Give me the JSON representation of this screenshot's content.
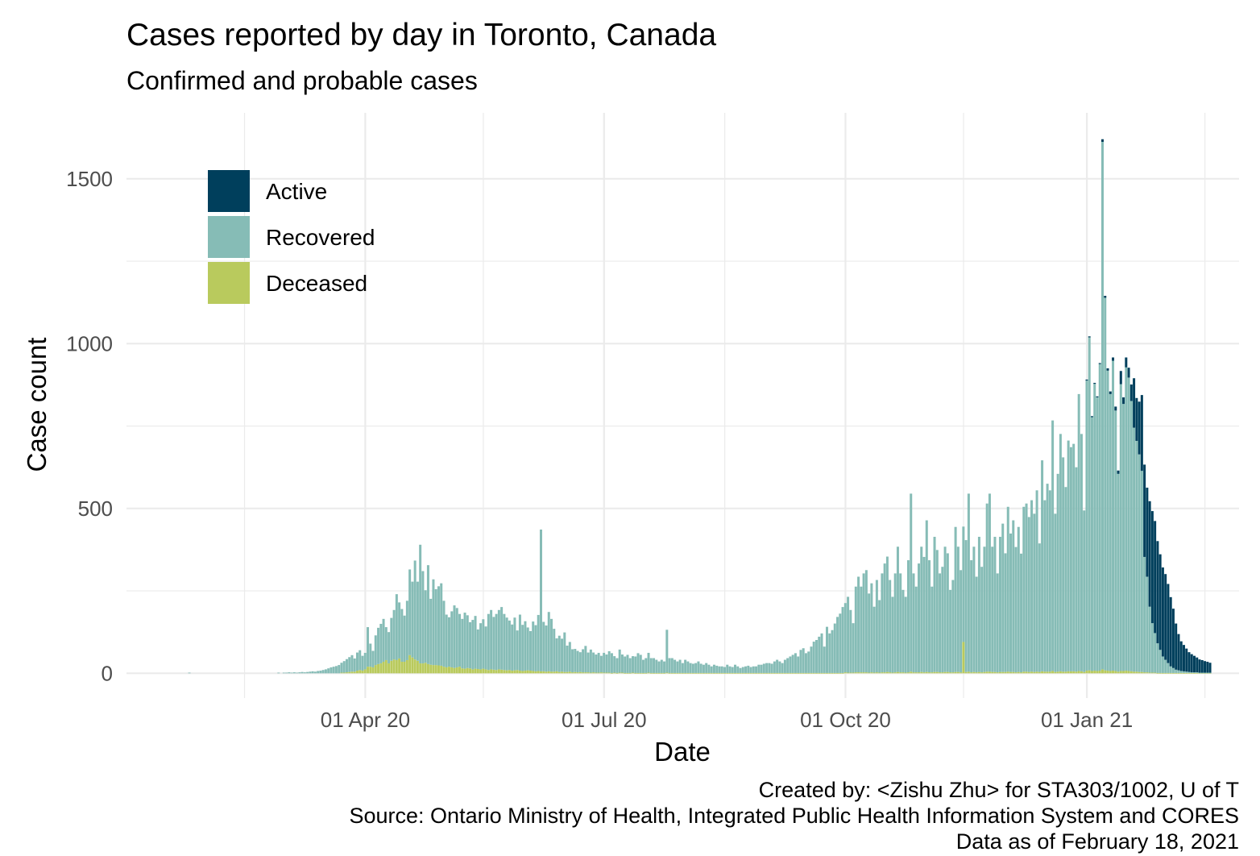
{
  "title": "Cases reported by day in Toronto, Canada",
  "subtitle": "Confirmed and probable cases",
  "caption": [
    "Created by: <Zishu Zhu> for STA303/1002, U of T",
    "Source: Ontario Ministry of Health, Integrated Public Health Information System and CORES",
    "Data as of February 18, 2021"
  ],
  "colors": {
    "active": "#003f5c",
    "recovered": "#86bcb6",
    "deceased": "#b9ca5d",
    "grid": "#ebebeb"
  },
  "chart_data": {
    "type": "bar",
    "stacked": true,
    "xlabel": "Date",
    "ylabel": "Case count",
    "x_ticks": [
      "01 Apr 20",
      "01 Jul 20",
      "01 Oct 20",
      "01 Jan 21"
    ],
    "y_ticks": [
      0,
      500,
      1000,
      1500
    ],
    "ylim": [
      -75,
      1700
    ],
    "xlim": [
      "2020-01-01",
      "2021-02-28"
    ],
    "legend_position": "top-left",
    "series": [
      {
        "name": "Active"
      },
      {
        "name": "Recovered"
      },
      {
        "name": "Deceased"
      }
    ],
    "segments": [
      {
        "start": "2020-01-25",
        "end": "2020-01-25",
        "recovered": [
          2
        ],
        "deceased": [
          0
        ],
        "active": [
          0
        ]
      },
      {
        "start": "2020-02-28",
        "end": "2020-02-28",
        "recovered": [
          2
        ],
        "deceased": [
          0
        ],
        "active": [
          0
        ]
      },
      {
        "start": "2020-03-01",
        "end": "2020-03-15",
        "recovered": [
          2,
          2,
          3,
          2,
          3,
          2,
          3,
          4,
          3,
          4,
          5,
          6,
          5,
          7,
          8
        ],
        "deceased": [
          0,
          0,
          0,
          0,
          0,
          0,
          0,
          0,
          0,
          0,
          0,
          0,
          0,
          0,
          0
        ],
        "active": [
          0,
          0,
          0,
          0,
          0,
          0,
          0,
          0,
          0,
          0,
          0,
          0,
          0,
          0,
          0
        ]
      },
      {
        "start": "2020-03-16",
        "end": "2020-04-30",
        "recovered": [
          10,
          12,
          15,
          18,
          20,
          22,
          25,
          30,
          35,
          40,
          45,
          50,
          40,
          55,
          60,
          45,
          50,
          120,
          70,
          50,
          90,
          110,
          120,
          130,
          100,
          95,
          130,
          150,
          200,
          170,
          160,
          140,
          180,
          260,
          230,
          300,
          240,
          360,
          280,
          220,
          300,
          200,
          260,
          230,
          240,
          250
        ],
        "deceased": [
          0,
          0,
          0,
          0,
          0,
          0,
          0,
          2,
          2,
          3,
          4,
          5,
          5,
          8,
          10,
          8,
          12,
          20,
          20,
          18,
          25,
          28,
          30,
          35,
          40,
          30,
          38,
          42,
          40,
          45,
          35,
          35,
          40,
          55,
          48,
          42,
          38,
          30,
          30,
          32,
          28,
          26,
          25,
          25,
          24,
          23
        ],
        "active": [
          0,
          0,
          0,
          0,
          0,
          0,
          0,
          0,
          0,
          0,
          0,
          0,
          0,
          0,
          0,
          0,
          0,
          0,
          0,
          0,
          0,
          0,
          0,
          0,
          0,
          0,
          0,
          0,
          0,
          0,
          0,
          0,
          0,
          0,
          0,
          0,
          0,
          0,
          0,
          0,
          0,
          0,
          0,
          0,
          0,
          0
        ]
      },
      {
        "start": "2020-05-01",
        "end": "2020-06-30",
        "recovered": [
          200,
          160,
          150,
          170,
          190,
          180,
          160,
          150,
          170,
          160,
          140,
          150,
          160,
          120,
          140,
          150,
          130,
          170,
          180,
          160,
          170,
          180,
          190,
          170,
          160,
          150,
          140,
          160,
          120,
          170,
          140,
          150,
          130,
          120,
          150,
          140,
          170,
          430,
          150,
          140,
          180,
          160,
          130,
          100,
          110,
          100,
          120,
          80,
          90,
          70,
          70,
          65,
          60,
          70,
          80,
          60,
          70,
          60,
          55,
          60,
          50
        ],
        "deceased": [
          20,
          18,
          20,
          18,
          16,
          18,
          20,
          15,
          14,
          16,
          15,
          12,
          14,
          13,
          12,
          14,
          12,
          10,
          12,
          11,
          10,
          12,
          11,
          10,
          9,
          10,
          8,
          9,
          10,
          8,
          7,
          8,
          9,
          8,
          7,
          6,
          7,
          6,
          6,
          5,
          6,
          5,
          5,
          6,
          4,
          5,
          4,
          4,
          5,
          3,
          4,
          3,
          4,
          3,
          3,
          3,
          2,
          3,
          2,
          2,
          3
        ],
        "active": [
          0,
          0,
          0,
          0,
          0,
          0,
          0,
          0,
          0,
          0,
          0,
          0,
          0,
          0,
          0,
          0,
          0,
          0,
          0,
          0,
          0,
          0,
          0,
          0,
          0,
          0,
          0,
          0,
          0,
          0,
          0,
          0,
          0,
          0,
          0,
          0,
          0,
          0,
          0,
          0,
          0,
          0,
          0,
          0,
          0,
          0,
          0,
          0,
          0,
          0,
          0,
          0,
          0,
          0,
          0,
          0,
          0,
          0,
          0,
          0,
          0
        ]
      },
      {
        "start": "2020-07-01",
        "end": "2020-07-31",
        "recovered": [
          60,
          55,
          65,
          60,
          50,
          45,
          70,
          55,
          50,
          55,
          45,
          50,
          50,
          60,
          55,
          40,
          45,
          60,
          45,
          45,
          40,
          35,
          40,
          35,
          130,
          45,
          45,
          40,
          35,
          40,
          30
        ],
        "deceased": [
          2,
          2,
          2,
          1,
          2,
          1,
          2,
          2,
          1,
          1,
          1,
          2,
          1,
          1,
          1,
          1,
          1,
          2,
          1,
          1,
          1,
          1,
          1,
          1,
          2,
          1,
          1,
          1,
          1,
          1,
          1
        ],
        "active": [
          0,
          0,
          0,
          0,
          0,
          0,
          0,
          0,
          0,
          0,
          0,
          0,
          0,
          0,
          0,
          0,
          0,
          0,
          0,
          0,
          0,
          0,
          0,
          0,
          0,
          0,
          0,
          0,
          0,
          0,
          0
        ]
      },
      {
        "start": "2020-08-01",
        "end": "2020-08-31",
        "recovered": [
          40,
          35,
          30,
          28,
          30,
          35,
          28,
          25,
          30,
          25,
          20,
          25,
          22,
          20,
          20,
          18,
          25,
          20,
          18,
          25,
          20,
          15,
          18,
          20,
          22,
          18,
          20,
          20,
          25,
          25,
          28
        ],
        "deceased": [
          1,
          1,
          1,
          1,
          1,
          1,
          1,
          1,
          1,
          1,
          1,
          1,
          1,
          1,
          1,
          1,
          1,
          1,
          1,
          1,
          1,
          1,
          1,
          1,
          1,
          1,
          1,
          1,
          1,
          1,
          1
        ],
        "active": [
          0,
          0,
          0,
          0,
          0,
          0,
          0,
          0,
          0,
          0,
          0,
          0,
          0,
          0,
          0,
          0,
          0,
          0,
          0,
          0,
          0,
          0,
          0,
          0,
          0,
          0,
          0,
          0,
          0,
          0,
          0
        ]
      },
      {
        "start": "2020-09-01",
        "end": "2020-09-30",
        "recovered": [
          30,
          30,
          28,
          35,
          40,
          35,
          30,
          40,
          45,
          50,
          55,
          60,
          50,
          70,
          75,
          60,
          65,
          80,
          95,
          100,
          110,
          120,
          80,
          140,
          120,
          130,
          150,
          170,
          180,
          200
        ],
        "deceased": [
          1,
          1,
          1,
          1,
          1,
          1,
          1,
          1,
          1,
          1,
          1,
          1,
          1,
          1,
          1,
          1,
          1,
          1,
          1,
          1,
          1,
          1,
          1,
          1,
          1,
          1,
          1,
          1,
          1,
          1
        ],
        "active": [
          0,
          0,
          0,
          0,
          0,
          0,
          0,
          0,
          0,
          0,
          0,
          0,
          0,
          0,
          0,
          0,
          0,
          0,
          0,
          0,
          0,
          0,
          0,
          0,
          0,
          0,
          0,
          0,
          0,
          0
        ]
      },
      {
        "start": "2020-10-01",
        "end": "2020-10-31",
        "recovered": [
          210,
          230,
          190,
          150,
          260,
          290,
          260,
          300,
          310,
          240,
          270,
          200,
          280,
          220,
          300,
          330,
          350,
          280,
          230,
          300,
          380,
          300,
          250,
          230,
          340,
          540,
          300,
          260,
          330,
          380,
          350
        ],
        "deceased": [
          3,
          2,
          2,
          2,
          3,
          3,
          3,
          3,
          3,
          2,
          3,
          2,
          3,
          2,
          3,
          3,
          4,
          3,
          2,
          3,
          4,
          3,
          3,
          2,
          3,
          5,
          3,
          3,
          3,
          4,
          3
        ],
        "active": [
          0,
          0,
          0,
          0,
          0,
          0,
          0,
          0,
          0,
          0,
          0,
          0,
          0,
          0,
          0,
          0,
          0,
          0,
          0,
          0,
          0,
          0,
          0,
          0,
          0,
          0,
          0,
          0,
          0,
          0,
          0
        ]
      },
      {
        "start": "2020-11-01",
        "end": "2020-11-30",
        "recovered": [
          460,
          340,
          260,
          410,
          370,
          300,
          320,
          380,
          360,
          250,
          280,
          440,
          380,
          310,
          350,
          400,
          540,
          340,
          380,
          290,
          410,
          320,
          380,
          510,
          540,
          380,
          410,
          300,
          410,
          450
        ],
        "deceased": [
          4,
          3,
          3,
          4,
          4,
          3,
          3,
          4,
          4,
          3,
          3,
          4,
          4,
          3,
          95,
          4,
          5,
          3,
          4,
          3,
          4,
          3,
          4,
          5,
          5,
          4,
          4,
          3,
          4,
          4
        ],
        "active": [
          0,
          0,
          0,
          0,
          0,
          0,
          0,
          0,
          0,
          0,
          0,
          0,
          0,
          0,
          0,
          0,
          0,
          0,
          0,
          0,
          0,
          0,
          0,
          0,
          0,
          0,
          0,
          0,
          0,
          0
        ]
      },
      {
        "start": "2020-12-01",
        "end": "2020-12-31",
        "recovered": [
          360,
          500,
          420,
          460,
          380,
          440,
          360,
          500,
          510,
          470,
          520,
          480,
          550,
          390,
          640,
          520,
          570,
          550,
          760,
          480,
          600,
          720,
          650,
          560,
          700,
          680,
          690,
          620,
          840,
          720,
          490
        ],
        "deceased": [
          4,
          5,
          4,
          4,
          3,
          4,
          3,
          5,
          5,
          4,
          5,
          4,
          5,
          4,
          6,
          5,
          5,
          5,
          7,
          4,
          5,
          6,
          5,
          5,
          6,
          6,
          6,
          5,
          7,
          6,
          4
        ],
        "active": [
          0,
          0,
          0,
          0,
          0,
          0,
          0,
          0,
          0,
          0,
          0,
          0,
          0,
          0,
          0,
          0,
          0,
          0,
          0,
          0,
          0,
          0,
          0,
          0,
          0,
          0,
          0,
          0,
          0,
          0,
          0
        ]
      },
      {
        "start": "2021-01-01",
        "end": "2021-01-31",
        "recovered": [
          880,
          1010,
          770,
          870,
          830,
          930,
          1600,
          1130,
          910,
          840,
          940,
          790,
          600,
          870,
          810,
          920,
          890,
          820,
          740,
          700,
          660,
          610,
          350,
          290,
          200,
          150,
          120,
          90,
          70,
          50,
          40
        ],
        "deceased": [
          8,
          9,
          7,
          8,
          7,
          8,
          12,
          9,
          8,
          7,
          8,
          7,
          5,
          7,
          7,
          8,
          7,
          6,
          5,
          5,
          4,
          4,
          3,
          3,
          2,
          2,
          2,
          1,
          1,
          1,
          1
        ],
        "active": [
          3,
          3,
          3,
          3,
          3,
          3,
          8,
          6,
          7,
          8,
          10,
          12,
          10,
          40,
          20,
          30,
          30,
          50,
          150,
          130,
          160,
          230,
          280,
          270,
          320,
          340,
          340,
          310,
          290,
          270,
          260
        ]
      },
      {
        "start": "2021-02-01",
        "end": "2021-02-17",
        "recovered": [
          30,
          20,
          15,
          10,
          8,
          6,
          5,
          4,
          3,
          2,
          2,
          2,
          1,
          1,
          1,
          1,
          1
        ],
        "deceased": [
          1,
          1,
          1,
          1,
          1,
          1,
          1,
          1,
          1,
          1,
          1,
          1,
          1,
          1,
          1,
          1,
          1
        ],
        "active": [
          240,
          210,
          180,
          140,
          110,
          90,
          80,
          70,
          60,
          55,
          50,
          45,
          40,
          38,
          35,
          33,
          30
        ]
      }
    ]
  }
}
